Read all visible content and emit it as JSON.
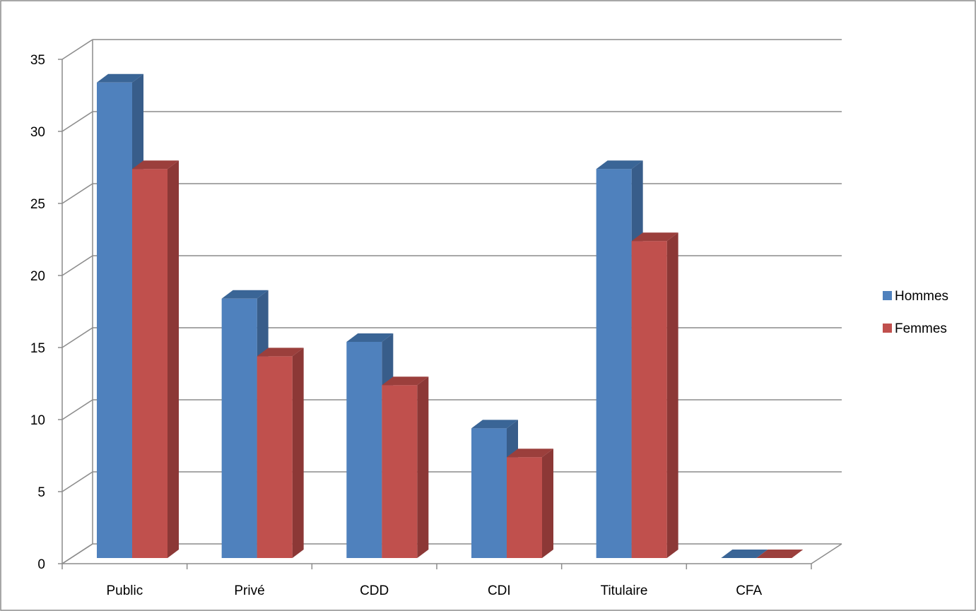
{
  "chart_data": {
    "type": "bar",
    "style": "3d-clustered-column",
    "title": "",
    "xlabel": "",
    "ylabel": "",
    "categories": [
      "Public",
      "Privé",
      "CDD",
      "CDI",
      "Titulaire",
      "CFA"
    ],
    "series": [
      {
        "name": "Hommes",
        "values": [
          33,
          18,
          15,
          9,
          27,
          0
        ],
        "color": "#4F81BD",
        "side_color": "#385D8A",
        "top_color": "#3A6596"
      },
      {
        "name": "Femmes",
        "values": [
          27,
          14,
          12,
          7,
          22,
          0
        ],
        "color": "#C0504D",
        "side_color": "#8C3836",
        "top_color": "#9B3F3C"
      }
    ],
    "ylim": [
      0,
      35
    ],
    "yticks": [
      "0",
      "5",
      "10",
      "15",
      "20",
      "25",
      "30",
      "35"
    ],
    "grid": true,
    "legend_position": "right"
  }
}
